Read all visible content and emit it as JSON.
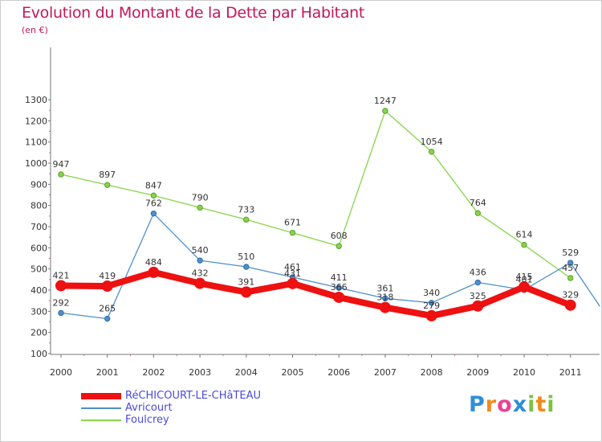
{
  "header": {
    "title": "Evolution du Montant de la Dette par Habitant",
    "unit": "(en €)"
  },
  "brand": {
    "letters": [
      {
        "ch": "P",
        "color": "#2e8fd6"
      },
      {
        "ch": "r",
        "color": "#f08a1c"
      },
      {
        "ch": "o",
        "color": "#e84393"
      },
      {
        "ch": "x",
        "color": "#2e8fd6"
      },
      {
        "ch": "i",
        "color": "#7cc242"
      },
      {
        "ch": "t",
        "color": "#f08a1c"
      },
      {
        "ch": "i",
        "color": "#7cc242"
      }
    ]
  },
  "chart_data": {
    "type": "line",
    "title": "Evolution du Montant de la Dette par Habitant",
    "ylabel": "(en €)",
    "xlabel": "",
    "ylim": [
      100,
      1300
    ],
    "yticks": [
      100,
      200,
      300,
      400,
      500,
      600,
      700,
      800,
      900,
      1000,
      1100,
      1200,
      1300
    ],
    "x": [
      "2000",
      "2001",
      "2002",
      "2003",
      "2004",
      "2005",
      "2006",
      "2007",
      "2008",
      "2009",
      "2010",
      "2011"
    ],
    "grid": false,
    "legend": "bottom-left",
    "series": [
      {
        "name": "Foulcrey",
        "color": "#88d44a",
        "values": [
          947,
          897,
          847,
          790,
          733,
          671,
          608,
          1247,
          1054,
          764,
          614,
          457
        ],
        "breaks_after": []
      },
      {
        "name": "Avricourt",
        "color": "#4f8fcc",
        "values": [
          292,
          265,
          762,
          540,
          510,
          461,
          411,
          361,
          340,
          436,
          401,
          529
        ],
        "extends_right_to": 325
      },
      {
        "name": "RéCHICOURT-LE-CHâTEAU",
        "color": "#ee1111",
        "values": [
          421,
          419,
          484,
          432,
          391,
          431,
          366,
          318,
          279,
          325,
          415,
          329
        ]
      }
    ]
  }
}
